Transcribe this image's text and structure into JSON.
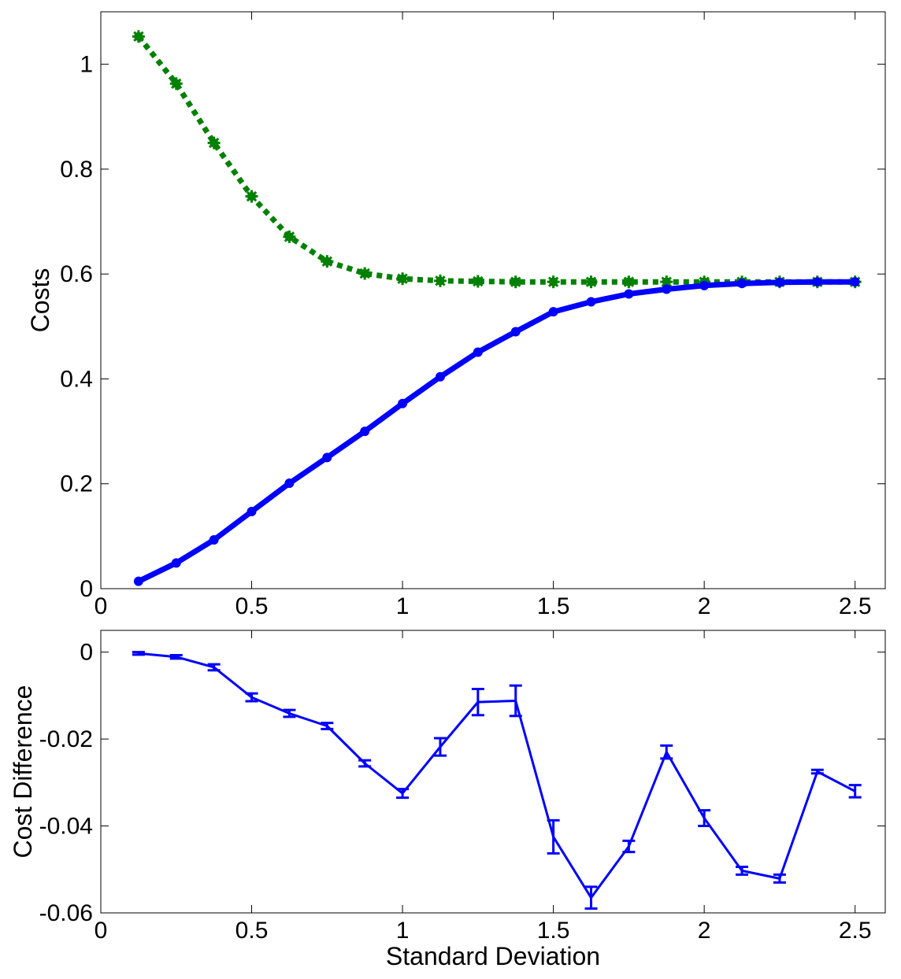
{
  "chart_data": [
    {
      "type": "line",
      "xlabel": "",
      "ylabel": "Costs",
      "xlim": [
        0,
        2.6
      ],
      "ylim": [
        0,
        1.1
      ],
      "xticks": [
        0,
        0.5,
        1,
        1.5,
        2,
        2.5
      ],
      "xtick_labels": [
        "0",
        "0.5",
        "1",
        "1.5",
        "2",
        "2.5"
      ],
      "yticks": [
        0,
        0.2,
        0.4,
        0.6,
        0.8,
        1
      ],
      "ytick_labels": [
        "0",
        "0.2",
        "0.4",
        "0.6",
        "0.8",
        "1"
      ],
      "grid": false,
      "x": [
        0.125,
        0.25,
        0.375,
        0.5,
        0.625,
        0.75,
        0.875,
        1.0,
        1.125,
        1.25,
        1.375,
        1.5,
        1.625,
        1.75,
        1.875,
        2.0,
        2.125,
        2.25,
        2.375,
        2.5
      ],
      "series": [
        {
          "color": "#008000",
          "style": "dotted",
          "marker": "circle-star",
          "values": [
            1.053,
            0.963,
            0.85,
            0.748,
            0.671,
            0.624,
            0.601,
            0.591,
            0.587,
            0.586,
            0.585,
            0.585,
            0.585,
            0.585,
            0.585,
            0.585,
            0.585,
            0.585,
            0.585,
            0.585
          ]
        },
        {
          "color": "#0000ff",
          "style": "solid",
          "marker": "circle",
          "values": [
            0.014,
            0.049,
            0.093,
            0.147,
            0.201,
            0.25,
            0.3,
            0.353,
            0.404,
            0.451,
            0.49,
            0.528,
            0.547,
            0.562,
            0.571,
            0.578,
            0.582,
            0.584,
            0.585,
            0.585
          ]
        }
      ]
    },
    {
      "type": "line",
      "xlabel": "Standard Deviation",
      "ylabel": "Cost Difference",
      "xlim": [
        0,
        2.6
      ],
      "ylim": [
        -0.06,
        0.005
      ],
      "xticks": [
        0,
        0.5,
        1,
        1.5,
        2,
        2.5
      ],
      "xtick_labels": [
        "0",
        "0.5",
        "1",
        "1.5",
        "2",
        "2.5"
      ],
      "yticks": [
        -0.06,
        -0.04,
        -0.02,
        0
      ],
      "ytick_labels": [
        "-0.06",
        "-0.04",
        "-0.02",
        "0"
      ],
      "grid": false,
      "x": [
        0.125,
        0.25,
        0.375,
        0.5,
        0.625,
        0.75,
        0.875,
        1.0,
        1.125,
        1.25,
        1.375,
        1.5,
        1.625,
        1.75,
        1.875,
        2.0,
        2.125,
        2.25,
        2.375,
        2.5
      ],
      "series": [
        {
          "color": "#0000ff",
          "style": "solid",
          "error_bars": true,
          "values": [
            -0.0003,
            -0.0011,
            -0.0035,
            -0.0104,
            -0.0141,
            -0.017,
            -0.0256,
            -0.0325,
            -0.0218,
            -0.0115,
            -0.0112,
            -0.0425,
            -0.0565,
            -0.0447,
            -0.023,
            -0.0382,
            -0.0503,
            -0.0521,
            -0.0275,
            -0.032
          ],
          "errors": [
            0.0003,
            0.0004,
            0.0007,
            0.0009,
            0.0008,
            0.0007,
            0.0007,
            0.001,
            0.002,
            0.003,
            0.0035,
            0.0038,
            0.0025,
            0.0013,
            0.0015,
            0.0018,
            0.0009,
            0.0009,
            0.0004,
            0.0014
          ]
        }
      ]
    }
  ]
}
